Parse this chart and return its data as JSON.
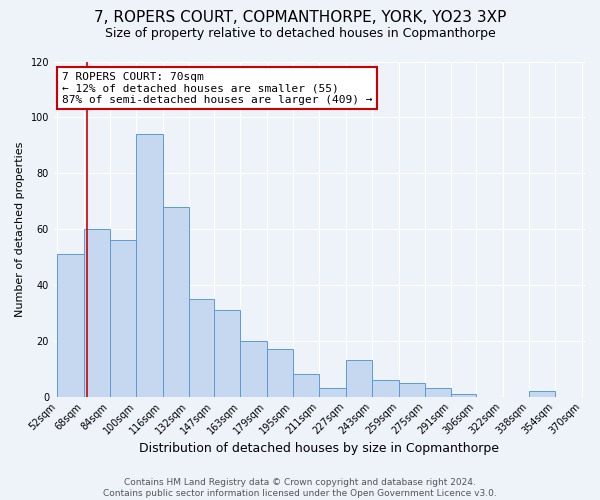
{
  "title": "7, ROPERS COURT, COPMANTHORPE, YORK, YO23 3XP",
  "subtitle": "Size of property relative to detached houses in Copmanthorpe",
  "xlabel": "Distribution of detached houses by size in Copmanthorpe",
  "ylabel": "Number of detached properties",
  "footer_line1": "Contains HM Land Registry data © Crown copyright and database right 2024.",
  "footer_line2": "Contains public sector information licensed under the Open Government Licence v3.0.",
  "annotation_title": "7 ROPERS COURT: 70sqm",
  "annotation_line1": "← 12% of detached houses are smaller (55)",
  "annotation_line2": "87% of semi-detached houses are larger (409) →",
  "bar_color": "#c5d8f0",
  "bar_edge_color": "#5b9bd5",
  "vline_color": "#cc0000",
  "vline_x": 70,
  "annotation_box_edge_color": "#cc0000",
  "bins": [
    52,
    68,
    84,
    100,
    116,
    132,
    147,
    163,
    179,
    195,
    211,
    227,
    243,
    259,
    275,
    291,
    306,
    322,
    338,
    354,
    370
  ],
  "bin_labels": [
    "52sqm",
    "68sqm",
    "84sqm",
    "100sqm",
    "116sqm",
    "132sqm",
    "147sqm",
    "163sqm",
    "179sqm",
    "195sqm",
    "211sqm",
    "227sqm",
    "243sqm",
    "259sqm",
    "275sqm",
    "291sqm",
    "306sqm",
    "322sqm",
    "338sqm",
    "354sqm",
    "370sqm"
  ],
  "counts": [
    51,
    60,
    56,
    94,
    68,
    35,
    31,
    20,
    17,
    8,
    3,
    13,
    6,
    5,
    3,
    1,
    0,
    0,
    2,
    0
  ],
  "ylim": [
    0,
    120
  ],
  "yticks": [
    0,
    20,
    40,
    60,
    80,
    100,
    120
  ],
  "background_color": "#eef2f9",
  "title_fontsize": 11,
  "subtitle_fontsize": 9,
  "xlabel_fontsize": 9,
  "ylabel_fontsize": 8,
  "tick_fontsize": 7,
  "annotation_fontsize": 8,
  "footer_fontsize": 6.5
}
